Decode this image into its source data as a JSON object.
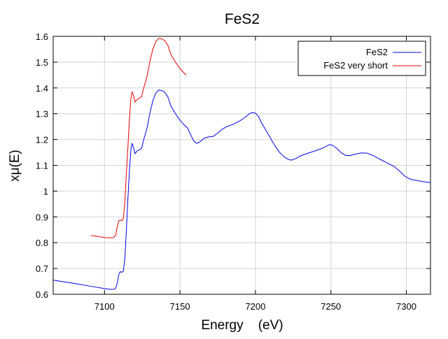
{
  "chart_data": {
    "type": "line",
    "title": "FeS2",
    "xlabel": "Energy    (eV)",
    "ylabel": "xμ(E)",
    "xlim": [
      7066,
      7316
    ],
    "ylim": [
      0.6,
      1.6
    ],
    "xticks": [
      7100,
      7150,
      7200,
      7250,
      7300
    ],
    "yticks": [
      0.6,
      0.7,
      0.8,
      0.9,
      1,
      1.1,
      1.2,
      1.3,
      1.4,
      1.5,
      1.6
    ],
    "xtick_labels": [
      "7100",
      "7150",
      "7200",
      "7250",
      "7300"
    ],
    "ytick_labels": [
      "0.6",
      "0.7",
      "0.8",
      "0.9",
      "1",
      "1.1",
      "1.2",
      "1.3",
      "1.4",
      "1.5",
      "1.6"
    ],
    "grid": true,
    "legend_position": "top-right",
    "series": [
      {
        "name": "FeS2",
        "color": "#0000ee",
        "points": [
          [
            7066,
            0.655
          ],
          [
            7080,
            0.642
          ],
          [
            7090,
            0.632
          ],
          [
            7100,
            0.622
          ],
          [
            7104,
            0.619
          ],
          [
            7106,
            0.619
          ],
          [
            7107.5,
            0.624
          ],
          [
            7108.5,
            0.645
          ],
          [
            7109.5,
            0.678
          ],
          [
            7110.5,
            0.688
          ],
          [
            7111.5,
            0.685
          ],
          [
            7112.5,
            0.69
          ],
          [
            7113.5,
            0.74
          ],
          [
            7114.5,
            0.85
          ],
          [
            7115.5,
            0.97
          ],
          [
            7116.5,
            1.08
          ],
          [
            7117.5,
            1.16
          ],
          [
            7118.3,
            1.185
          ],
          [
            7119.2,
            1.17
          ],
          [
            7120.2,
            1.145
          ],
          [
            7121.5,
            1.155
          ],
          [
            7123,
            1.16
          ],
          [
            7124.5,
            1.165
          ],
          [
            7126,
            1.2
          ],
          [
            7128,
            1.24
          ],
          [
            7130,
            1.3
          ],
          [
            7132,
            1.35
          ],
          [
            7134,
            1.38
          ],
          [
            7136,
            1.392
          ],
          [
            7138,
            1.39
          ],
          [
            7140,
            1.383
          ],
          [
            7142,
            1.365
          ],
          [
            7144,
            1.33
          ],
          [
            7147,
            1.3
          ],
          [
            7150,
            1.275
          ],
          [
            7153,
            1.255
          ],
          [
            7155,
            1.245
          ],
          [
            7157,
            1.22
          ],
          [
            7159,
            1.195
          ],
          [
            7161,
            1.185
          ],
          [
            7163,
            1.19
          ],
          [
            7166,
            1.205
          ],
          [
            7169,
            1.21
          ],
          [
            7172,
            1.212
          ],
          [
            7175,
            1.225
          ],
          [
            7178,
            1.24
          ],
          [
            7181,
            1.25
          ],
          [
            7185,
            1.258
          ],
          [
            7189,
            1.27
          ],
          [
            7193,
            1.285
          ],
          [
            7196,
            1.3
          ],
          [
            7198,
            1.305
          ],
          [
            7200,
            1.302
          ],
          [
            7202,
            1.29
          ],
          [
            7204,
            1.265
          ],
          [
            7207,
            1.235
          ],
          [
            7210,
            1.205
          ],
          [
            7213,
            1.175
          ],
          [
            7216,
            1.15
          ],
          [
            7219,
            1.133
          ],
          [
            7222,
            1.122
          ],
          [
            7224,
            1.12
          ],
          [
            7227,
            1.127
          ],
          [
            7230,
            1.137
          ],
          [
            7235,
            1.147
          ],
          [
            7240,
            1.157
          ],
          [
            7245,
            1.168
          ],
          [
            7249,
            1.18
          ],
          [
            7251,
            1.178
          ],
          [
            7254,
            1.165
          ],
          [
            7257,
            1.148
          ],
          [
            7260,
            1.138
          ],
          [
            7263,
            1.138
          ],
          [
            7266,
            1.143
          ],
          [
            7270,
            1.148
          ],
          [
            7274,
            1.147
          ],
          [
            7278,
            1.138
          ],
          [
            7283,
            1.122
          ],
          [
            7288,
            1.107
          ],
          [
            7292,
            1.095
          ],
          [
            7295,
            1.08
          ],
          [
            7299,
            1.058
          ],
          [
            7303,
            1.045
          ],
          [
            7308,
            1.04
          ],
          [
            7312,
            1.036
          ],
          [
            7316,
            1.033
          ]
        ]
      },
      {
        "name": "FeS2 very short",
        "color": "#ee0000",
        "points": [
          [
            7091,
            0.828
          ],
          [
            7095,
            0.825
          ],
          [
            7100,
            0.82
          ],
          [
            7104,
            0.819
          ],
          [
            7106,
            0.82
          ],
          [
            7107.5,
            0.83
          ],
          [
            7108.5,
            0.865
          ],
          [
            7109.5,
            0.885
          ],
          [
            7110.5,
            0.888
          ],
          [
            7111.5,
            0.885
          ],
          [
            7112.5,
            0.895
          ],
          [
            7113.5,
            0.96
          ],
          [
            7114.5,
            1.07
          ],
          [
            7115.5,
            1.17
          ],
          [
            7116.5,
            1.28
          ],
          [
            7117.5,
            1.36
          ],
          [
            7118.3,
            1.385
          ],
          [
            7119.2,
            1.37
          ],
          [
            7120.2,
            1.345
          ],
          [
            7121.5,
            1.355
          ],
          [
            7123,
            1.36
          ],
          [
            7124.5,
            1.365
          ],
          [
            7126,
            1.4
          ],
          [
            7128,
            1.44
          ],
          [
            7130,
            1.5
          ],
          [
            7132,
            1.55
          ],
          [
            7134,
            1.58
          ],
          [
            7136,
            1.592
          ],
          [
            7138,
            1.59
          ],
          [
            7140,
            1.583
          ],
          [
            7142,
            1.565
          ],
          [
            7144,
            1.53
          ],
          [
            7147,
            1.5
          ],
          [
            7150,
            1.475
          ],
          [
            7154,
            1.45
          ]
        ]
      }
    ]
  }
}
